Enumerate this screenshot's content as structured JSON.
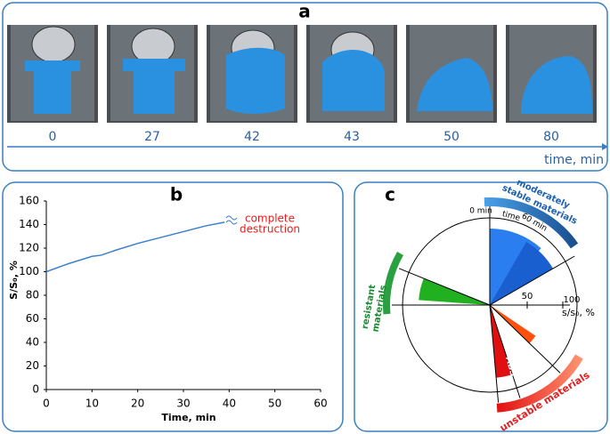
{
  "panel_a": {
    "label": "a",
    "times": [
      0,
      27,
      42,
      43,
      50,
      80
    ],
    "axis_label": "time, min"
  },
  "chart_data": {
    "type": "line",
    "label": "b",
    "xlabel": "Time, min",
    "ylabel": "S/S₀, %",
    "x": [
      0,
      5,
      10,
      12,
      15,
      20,
      25,
      30,
      35,
      39
    ],
    "series": [
      {
        "name": null,
        "color": "#3a7fd0",
        "values": [
          100,
          107,
          113,
          114,
          118,
          124,
          129,
          134,
          139,
          142
        ]
      }
    ],
    "xlim": [
      0,
      60
    ],
    "xticks": [
      0,
      10,
      20,
      30,
      40,
      50,
      60
    ],
    "ylim": [
      0,
      160
    ],
    "yticks": [
      0,
      20,
      40,
      60,
      80,
      100,
      120,
      140,
      160
    ],
    "annotation": [
      "complete",
      "destruction"
    ]
  },
  "panel_c": {
    "label": "c",
    "moderate": [
      "moderately",
      "stable materials"
    ],
    "resistant": [
      "resistant",
      "materials"
    ],
    "unstable": "unstable materials",
    "start": "0 min",
    "time": "time",
    "end": "60 min",
    "tick_50": "50",
    "tick_100": "100",
    "axis": "s/s₀, %",
    "abs": "ABS"
  }
}
